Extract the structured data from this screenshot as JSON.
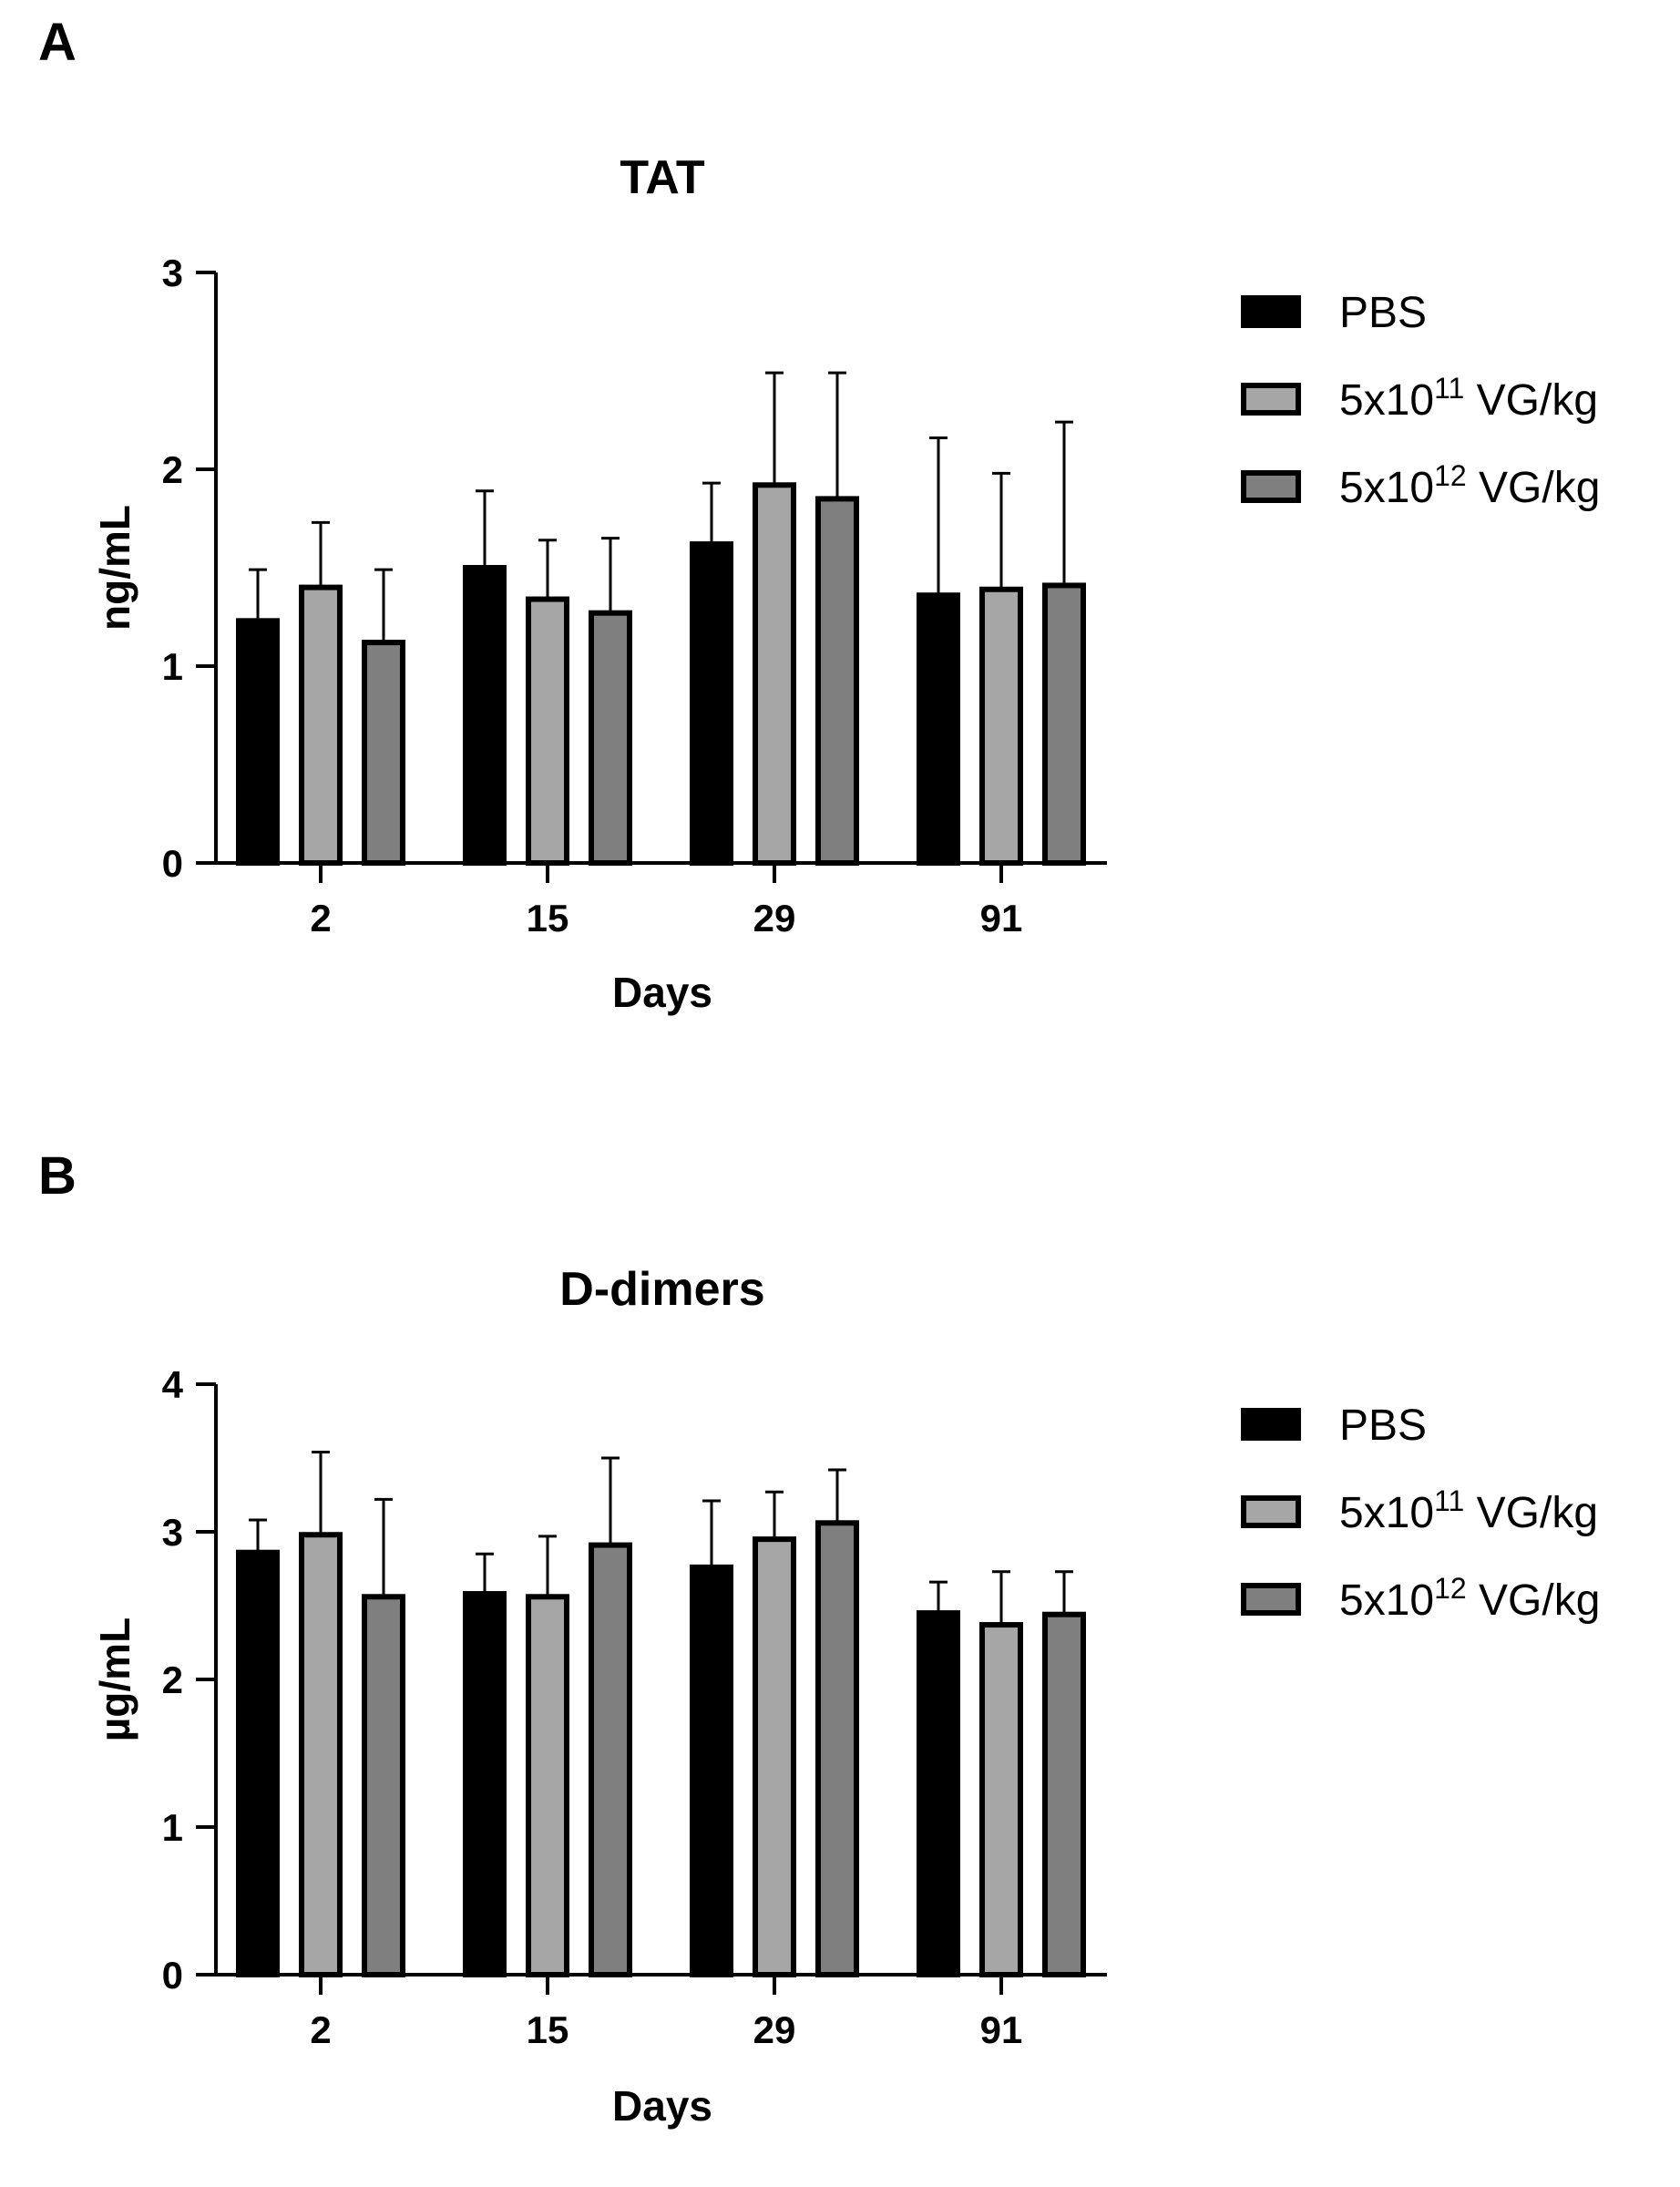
{
  "panels": [
    {
      "label": "A"
    },
    {
      "label": "B"
    }
  ],
  "legend": [
    {
      "base": "PBS",
      "sup": "",
      "unit": "",
      "color": "#000000"
    },
    {
      "base": "5x10",
      "sup": "11",
      "unit": " VG/kg",
      "color": "#a6a6a6"
    },
    {
      "base": "5x10",
      "sup": "12",
      "unit": " VG/kg",
      "color": "#7f7f7f"
    }
  ],
  "chart_data": [
    {
      "type": "bar",
      "title": "TAT",
      "xlabel": "Days",
      "ylabel": "ng/mL",
      "ylim": [
        0,
        3
      ],
      "yticks": [
        0,
        1,
        2,
        3
      ],
      "categories": [
        "2",
        "15",
        "29",
        "91"
      ],
      "series": [
        {
          "name": "PBS",
          "values": [
            1.23,
            1.5,
            1.62,
            1.36
          ],
          "errors": [
            0.26,
            0.39,
            0.31,
            0.8
          ]
        },
        {
          "name": "5x10^11 VG/kg",
          "values": [
            1.4,
            1.34,
            1.92,
            1.39
          ],
          "errors": [
            0.33,
            0.3,
            0.57,
            0.59
          ]
        },
        {
          "name": "5x10^12 VG/kg",
          "values": [
            1.12,
            1.27,
            1.85,
            1.41
          ],
          "errors": [
            0.37,
            0.38,
            0.64,
            0.83
          ]
        }
      ]
    },
    {
      "type": "bar",
      "title": "D-dimers",
      "xlabel": "Days",
      "ylabel": "µg/mL",
      "ylim": [
        0,
        4
      ],
      "yticks": [
        0,
        1,
        2,
        3,
        4
      ],
      "categories": [
        "2",
        "15",
        "29",
        "91"
      ],
      "series": [
        {
          "name": "PBS",
          "values": [
            2.86,
            2.58,
            2.76,
            2.45
          ],
          "errors": [
            0.22,
            0.27,
            0.45,
            0.21
          ]
        },
        {
          "name": "5x10^11 VG/kg",
          "values": [
            2.98,
            2.56,
            2.95,
            2.37
          ],
          "errors": [
            0.56,
            0.41,
            0.32,
            0.36
          ]
        },
        {
          "name": "5x10^12 VG/kg",
          "values": [
            2.56,
            2.91,
            3.06,
            2.44
          ],
          "errors": [
            0.66,
            0.59,
            0.36,
            0.29
          ]
        }
      ]
    }
  ]
}
